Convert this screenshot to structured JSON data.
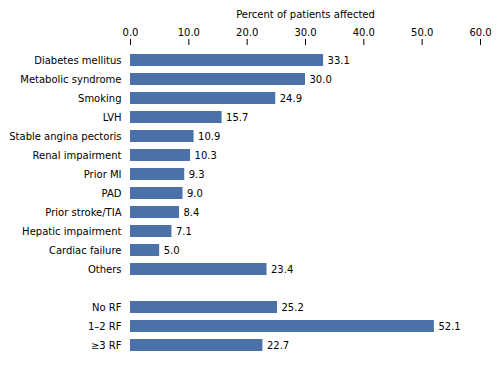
{
  "chart_data": {
    "type": "bar",
    "orientation": "horizontal",
    "x_label": "Percent of patients affected",
    "categories": [
      "Diabetes mellitus",
      "Metabolic syndrome",
      "Smoking",
      "LVH",
      "Stable angina pectoris",
      "Renal impairment",
      "Prior MI",
      "PAD",
      "Prior stroke/TIA",
      "Hepatic impairment",
      "Cardiac failure",
      "Others",
      null,
      "No RF",
      "1–2 RF",
      "≥3 RF"
    ],
    "values": [
      33.1,
      30.0,
      24.9,
      15.7,
      10.9,
      10.3,
      9.3,
      9.0,
      8.4,
      7.1,
      5.0,
      23.4,
      null,
      25.2,
      52.1,
      22.7
    ],
    "value_labels": [
      "33.1",
      "30.0",
      "24.9",
      "15.7",
      "10.9",
      "10.3",
      "9.3",
      "9.0",
      "8.4",
      "7.1",
      "5.0",
      "23.4",
      null,
      "25.2",
      "52.1",
      "22.7"
    ],
    "data_labels": true,
    "color": "#4a72a8",
    "xlim": [
      0,
      60
    ],
    "xticks": [
      {
        "value": 0,
        "label": "0.0"
      },
      {
        "value": 10,
        "label": "10.0"
      },
      {
        "value": 20,
        "label": "20.0"
      },
      {
        "value": 30,
        "label": "30.0"
      },
      {
        "value": 40,
        "label": "40.0"
      },
      {
        "value": 50,
        "label": "50.0"
      },
      {
        "value": 60,
        "label": "60.0"
      }
    ],
    "grid": false
  }
}
